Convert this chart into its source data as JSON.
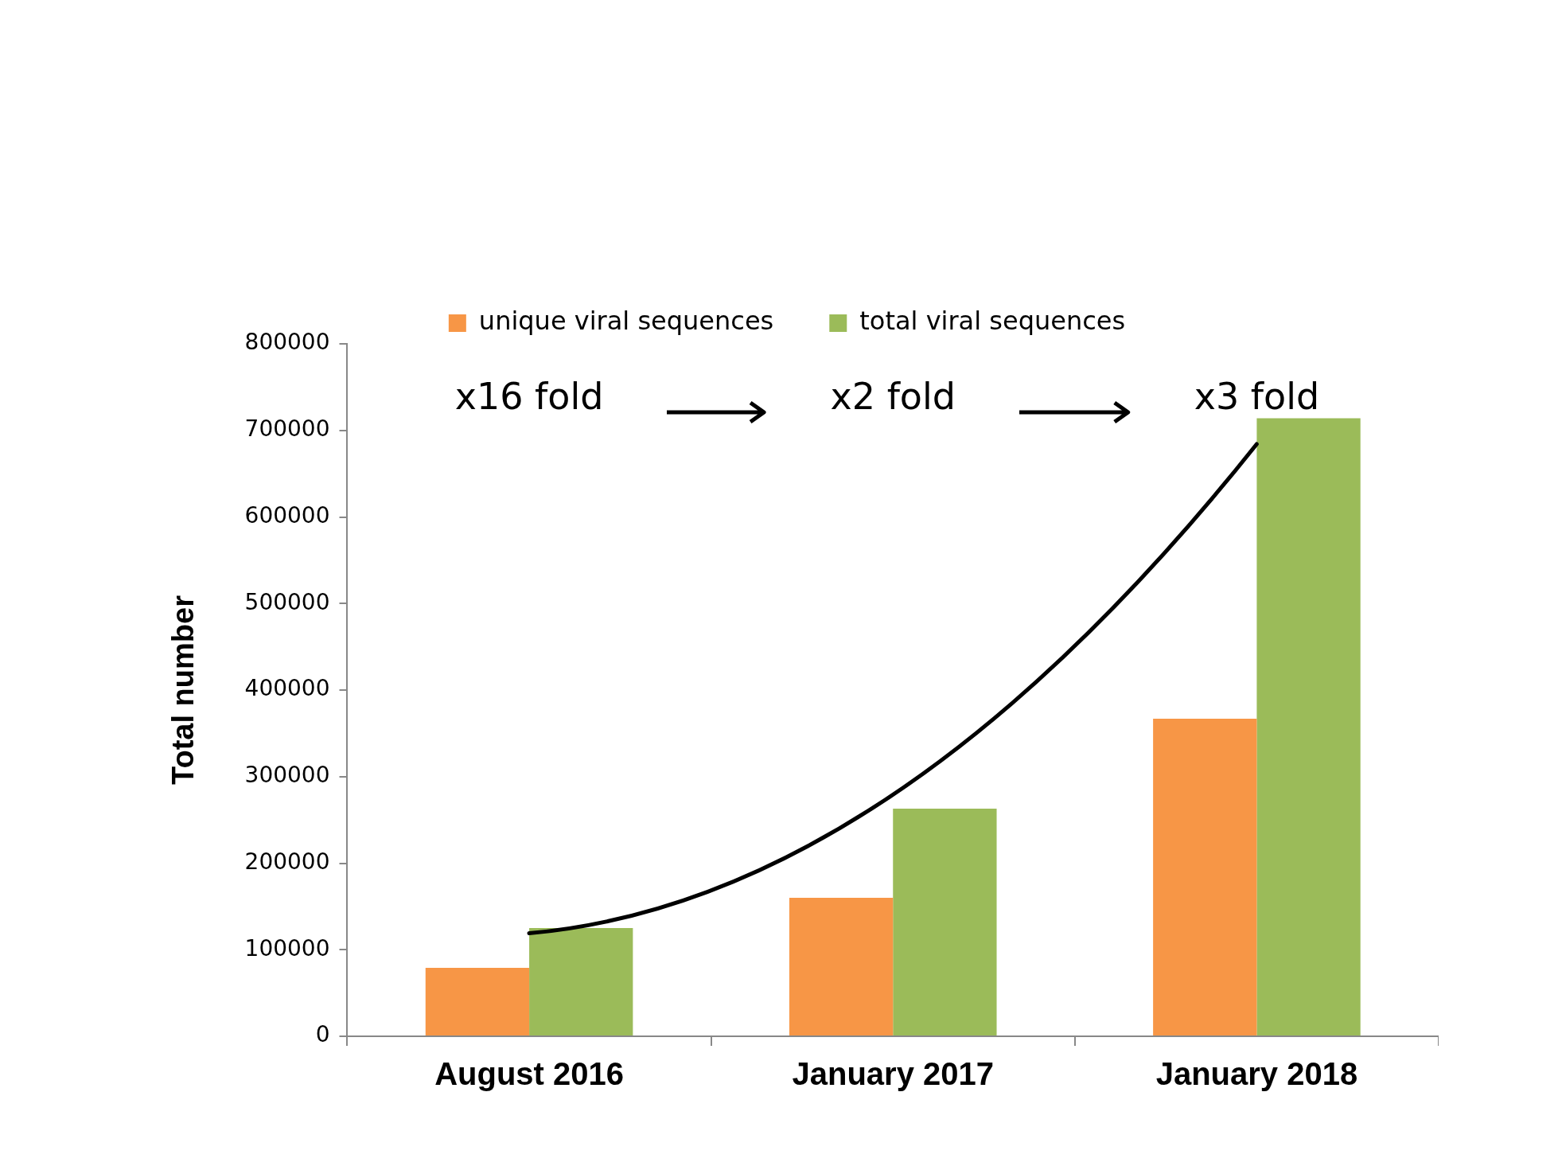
{
  "chart_data": {
    "type": "bar",
    "ylabel": "Total number",
    "categories": [
      "August 2016",
      "January 2017",
      "January 2018"
    ],
    "series": [
      {
        "name": "unique viral sequences",
        "color": "#f79646",
        "values": [
          79000,
          160000,
          367000
        ]
      },
      {
        "name": "total viral sequences",
        "color": "#9bbb59",
        "values": [
          125000,
          263000,
          714000
        ]
      }
    ],
    "ylim": [
      0,
      800000
    ],
    "yticks": [
      0,
      100000,
      200000,
      300000,
      400000,
      500000,
      600000,
      700000,
      800000
    ],
    "grid": false,
    "legend": "top",
    "annotations": [
      "x16 fold",
      "x2 fold",
      "x3 fold"
    ]
  }
}
